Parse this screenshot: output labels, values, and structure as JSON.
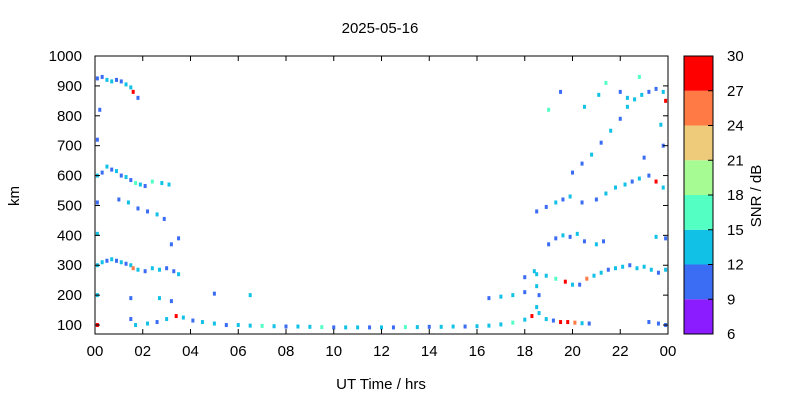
{
  "chart_data": {
    "type": "scatter",
    "title": "2025-05-16",
    "xlabel": "UT Time / hrs",
    "ylabel": "km",
    "xlim": [
      0,
      24
    ],
    "ylim": [
      70,
      1000
    ],
    "x_ticks": [
      "00",
      "02",
      "04",
      "06",
      "08",
      "10",
      "12",
      "14",
      "16",
      "18",
      "20",
      "22",
      "00"
    ],
    "y_ticks": [
      "100",
      "200",
      "300",
      "400",
      "500",
      "600",
      "700",
      "800",
      "900",
      "1000"
    ],
    "colorbar": {
      "label": "SNR / dB",
      "range": [
        6,
        30
      ],
      "ticks": [
        "6",
        "9",
        "12",
        "15",
        "18",
        "21",
        "24",
        "27",
        "30"
      ],
      "colors": [
        "#8a1cff",
        "#3a6cf4",
        "#12c1e6",
        "#54ffc4",
        "#a6fb93",
        "#eecb7a",
        "#ff7a45",
        "#ff0000"
      ]
    },
    "series": [
      {
        "points": [
          [
            0.1,
            925,
            11
          ],
          [
            0.3,
            930,
            10
          ],
          [
            0.5,
            920,
            12
          ],
          [
            0.7,
            915,
            14
          ],
          [
            0.9,
            920,
            10
          ],
          [
            1.1,
            915,
            11
          ],
          [
            1.3,
            905,
            13
          ],
          [
            1.5,
            895,
            12
          ],
          [
            1.6,
            880,
            27
          ],
          [
            1.8,
            860,
            10
          ],
          [
            0.2,
            820,
            11
          ],
          [
            0.1,
            720,
            10
          ],
          [
            0.1,
            600,
            13
          ],
          [
            0.3,
            610,
            10
          ],
          [
            0.5,
            630,
            12
          ],
          [
            0.7,
            620,
            11
          ],
          [
            0.9,
            615,
            14
          ],
          [
            1.1,
            600,
            10
          ],
          [
            1.3,
            595,
            12
          ],
          [
            1.5,
            585,
            11
          ],
          [
            1.7,
            575,
            16
          ],
          [
            1.9,
            570,
            13
          ],
          [
            2.1,
            565,
            11
          ],
          [
            2.4,
            580,
            16
          ],
          [
            2.8,
            575,
            14
          ],
          [
            3.1,
            570,
            12
          ],
          [
            0.1,
            510,
            11
          ],
          [
            1.0,
            520,
            10
          ],
          [
            1.4,
            510,
            12
          ],
          [
            1.8,
            490,
            11
          ],
          [
            2.2,
            480,
            10
          ],
          [
            2.6,
            470,
            13
          ],
          [
            2.9,
            455,
            11
          ],
          [
            0.1,
            405,
            12
          ],
          [
            3.2,
            370,
            11
          ],
          [
            3.5,
            390,
            10
          ],
          [
            0.1,
            300,
            13
          ],
          [
            0.3,
            310,
            12
          ],
          [
            0.5,
            315,
            11
          ],
          [
            0.7,
            320,
            14
          ],
          [
            0.9,
            315,
            10
          ],
          [
            1.1,
            310,
            12
          ],
          [
            1.3,
            305,
            11
          ],
          [
            1.5,
            300,
            13
          ],
          [
            1.6,
            290,
            25
          ],
          [
            1.8,
            285,
            12
          ],
          [
            2.1,
            280,
            11
          ],
          [
            2.4,
            290,
            14
          ],
          [
            2.7,
            285,
            12
          ],
          [
            3.0,
            290,
            11
          ],
          [
            3.3,
            280,
            10
          ],
          [
            3.5,
            270,
            13
          ],
          [
            0.1,
            200,
            14
          ],
          [
            1.5,
            190,
            11
          ],
          [
            2.7,
            190,
            12
          ],
          [
            3.2,
            180,
            11
          ],
          [
            5.0,
            205,
            10
          ],
          [
            6.5,
            200,
            12
          ],
          [
            0.1,
            100,
            27
          ],
          [
            1.5,
            120,
            11
          ],
          [
            1.7,
            100,
            13
          ],
          [
            2.2,
            105,
            12
          ],
          [
            2.6,
            110,
            11
          ],
          [
            3.0,
            120,
            13
          ],
          [
            3.4,
            130,
            28
          ],
          [
            3.7,
            125,
            12
          ],
          [
            4.1,
            115,
            11
          ],
          [
            4.5,
            110,
            14
          ],
          [
            5.0,
            105,
            12
          ],
          [
            5.5,
            100,
            11
          ],
          [
            6.0,
            100,
            13
          ],
          [
            6.5,
            98,
            12
          ],
          [
            7.0,
            97,
            15
          ],
          [
            7.5,
            96,
            12
          ],
          [
            8.0,
            95,
            11
          ],
          [
            8.5,
            95,
            13
          ],
          [
            9.0,
            94,
            12
          ],
          [
            9.5,
            93,
            16
          ],
          [
            10.0,
            92,
            11
          ],
          [
            10.5,
            92,
            12
          ],
          [
            11.0,
            92,
            13
          ],
          [
            11.5,
            92,
            11
          ],
          [
            12.0,
            92,
            12
          ],
          [
            12.5,
            92,
            11
          ],
          [
            13.0,
            93,
            16
          ],
          [
            13.5,
            93,
            12
          ],
          [
            14.0,
            94,
            11
          ],
          [
            14.5,
            94,
            13
          ],
          [
            15.0,
            95,
            12
          ],
          [
            15.5,
            95,
            11
          ],
          [
            16.0,
            96,
            12
          ],
          [
            16.5,
            98,
            14
          ],
          [
            17.0,
            102,
            12
          ],
          [
            17.5,
            108,
            16
          ],
          [
            18.0,
            118,
            13
          ],
          [
            18.3,
            130,
            27
          ],
          [
            18.6,
            140,
            14
          ],
          [
            18.9,
            120,
            12
          ],
          [
            19.2,
            115,
            11
          ],
          [
            19.5,
            110,
            28
          ],
          [
            19.8,
            110,
            27
          ],
          [
            20.1,
            108,
            26
          ],
          [
            20.4,
            106,
            12
          ],
          [
            20.7,
            105,
            11
          ],
          [
            23.2,
            110,
            10
          ],
          [
            23.6,
            105,
            11
          ],
          [
            23.9,
            100,
            10
          ],
          [
            16.5,
            190,
            11
          ],
          [
            17.0,
            195,
            14
          ],
          [
            17.5,
            200,
            12
          ],
          [
            18.0,
            210,
            11
          ],
          [
            18.4,
            280,
            13
          ],
          [
            18.5,
            230,
            12
          ],
          [
            18.6,
            200,
            11
          ],
          [
            18.5,
            160,
            14
          ],
          [
            18.0,
            260,
            11
          ],
          [
            18.5,
            270,
            14
          ],
          [
            18.9,
            265,
            12
          ],
          [
            19.3,
            255,
            16
          ],
          [
            19.7,
            245,
            27
          ],
          [
            20.0,
            235,
            12
          ],
          [
            20.3,
            235,
            11
          ],
          [
            20.6,
            255,
            25
          ],
          [
            20.9,
            265,
            12
          ],
          [
            21.2,
            275,
            14
          ],
          [
            21.5,
            285,
            11
          ],
          [
            21.8,
            290,
            12
          ],
          [
            22.1,
            295,
            13
          ],
          [
            22.4,
            300,
            11
          ],
          [
            22.7,
            290,
            12
          ],
          [
            23.0,
            295,
            14
          ],
          [
            23.3,
            285,
            12
          ],
          [
            23.6,
            275,
            11
          ],
          [
            23.9,
            285,
            13
          ],
          [
            19.0,
            370,
            11
          ],
          [
            19.3,
            390,
            10
          ],
          [
            19.6,
            400,
            12
          ],
          [
            19.9,
            395,
            11
          ],
          [
            20.2,
            405,
            14
          ],
          [
            20.5,
            380,
            10
          ],
          [
            21.0,
            370,
            12
          ],
          [
            21.3,
            380,
            11
          ],
          [
            23.5,
            395,
            12
          ],
          [
            23.9,
            390,
            11
          ],
          [
            18.5,
            480,
            11
          ],
          [
            18.9,
            495,
            10
          ],
          [
            19.3,
            510,
            12
          ],
          [
            19.6,
            520,
            11
          ],
          [
            19.9,
            530,
            12
          ],
          [
            20.4,
            510,
            10
          ],
          [
            21.0,
            520,
            11
          ],
          [
            21.4,
            540,
            12
          ],
          [
            21.8,
            560,
            13
          ],
          [
            22.2,
            570,
            14
          ],
          [
            22.5,
            580,
            11
          ],
          [
            22.8,
            590,
            12
          ],
          [
            23.2,
            600,
            11
          ],
          [
            23.5,
            580,
            27
          ],
          [
            23.8,
            560,
            12
          ],
          [
            20.0,
            610,
            11
          ],
          [
            20.4,
            640,
            10
          ],
          [
            20.8,
            670,
            12
          ],
          [
            21.2,
            710,
            11
          ],
          [
            21.6,
            750,
            12
          ],
          [
            22.0,
            790,
            11
          ],
          [
            22.3,
            830,
            13
          ],
          [
            22.6,
            855,
            14
          ],
          [
            22.9,
            870,
            12
          ],
          [
            23.2,
            880,
            11
          ],
          [
            23.5,
            890,
            10
          ],
          [
            23.8,
            880,
            12
          ],
          [
            23.9,
            850,
            27
          ],
          [
            19.5,
            880,
            11
          ],
          [
            19.0,
            820,
            16
          ],
          [
            20.5,
            830,
            12
          ],
          [
            21.1,
            870,
            13
          ],
          [
            21.4,
            910,
            16
          ],
          [
            22.0,
            880,
            11
          ],
          [
            22.3,
            860,
            14
          ],
          [
            23.7,
            770,
            12
          ],
          [
            23.8,
            700,
            11
          ],
          [
            23.0,
            660,
            10
          ],
          [
            22.8,
            930,
            16
          ]
        ]
      }
    ]
  }
}
